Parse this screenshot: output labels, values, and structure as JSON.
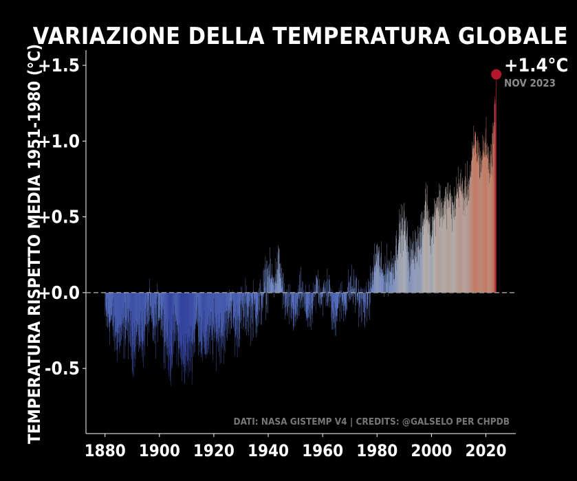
{
  "chart_data": {
    "type": "bar",
    "title": "VARIAZIONE DELLA TEMPERATURA GLOBALE",
    "ylabel": "TEMPERATURA RISPETTO MEDIA 1951-1980 (°C)",
    "xlabel": "",
    "x_range": [
      1873,
      2031
    ],
    "ylim": [
      -0.93,
      1.6
    ],
    "y_ticks": [
      {
        "value": 1.5,
        "label": "+1.5"
      },
      {
        "value": 1.0,
        "label": "+1.0"
      },
      {
        "value": 0.5,
        "label": "+0.5"
      },
      {
        "value": 0.0,
        "label": "+0.0"
      },
      {
        "value": -0.5,
        "label": "-0.5"
      }
    ],
    "x_ticks": [
      {
        "value": 1880,
        "label": "1880"
      },
      {
        "value": 1900,
        "label": "1900"
      },
      {
        "value": 1920,
        "label": "1920"
      },
      {
        "value": 1940,
        "label": "1940"
      },
      {
        "value": 1960,
        "label": "1960"
      },
      {
        "value": 1980,
        "label": "1980"
      },
      {
        "value": 2000,
        "label": "2000"
      },
      {
        "value": 2020,
        "label": "2020"
      }
    ],
    "data_note": "monthly anomalies, Jan 1880 - Nov 2023, approximated from the plotted curve",
    "keypoints": [
      [
        1880.0,
        -0.17
      ],
      [
        1882.0,
        -0.17
      ],
      [
        1884.0,
        -0.28
      ],
      [
        1886.0,
        -0.3
      ],
      [
        1888.0,
        -0.2
      ],
      [
        1890.0,
        -0.35
      ],
      [
        1892.0,
        -0.27
      ],
      [
        1894.0,
        -0.31
      ],
      [
        1896.0,
        -0.12
      ],
      [
        1898.0,
        -0.26
      ],
      [
        1900.0,
        -0.08
      ],
      [
        1902.0,
        -0.26
      ],
      [
        1904.0,
        -0.45
      ],
      [
        1906.0,
        -0.22
      ],
      [
        1908.0,
        -0.44
      ],
      [
        1910.0,
        -0.42
      ],
      [
        1912.0,
        -0.36
      ],
      [
        1914.0,
        -0.16
      ],
      [
        1916.0,
        -0.36
      ],
      [
        1918.0,
        -0.29
      ],
      [
        1920.0,
        -0.27
      ],
      [
        1922.0,
        -0.27
      ],
      [
        1924.0,
        -0.27
      ],
      [
        1926.0,
        -0.08
      ],
      [
        1928.0,
        -0.26
      ],
      [
        1930.0,
        -0.14
      ],
      [
        1932.0,
        -0.11
      ],
      [
        1934.0,
        -0.12
      ],
      [
        1936.0,
        -0.12
      ],
      [
        1938.0,
        -0.02
      ],
      [
        1940.0,
        0.12
      ],
      [
        1942.0,
        0.07
      ],
      [
        1944.0,
        0.2
      ],
      [
        1946.0,
        -0.07
      ],
      [
        1948.0,
        -0.1
      ],
      [
        1950.0,
        -0.17
      ],
      [
        1952.0,
        0.01
      ],
      [
        1954.0,
        -0.13
      ],
      [
        1956.0,
        -0.14
      ],
      [
        1958.0,
        0.06
      ],
      [
        1960.0,
        -0.03
      ],
      [
        1962.0,
        0.04
      ],
      [
        1964.0,
        -0.2
      ],
      [
        1966.0,
        -0.05
      ],
      [
        1968.0,
        -0.07
      ],
      [
        1970.0,
        0.03
      ],
      [
        1972.0,
        0.01
      ],
      [
        1974.0,
        -0.07
      ],
      [
        1976.0,
        -0.1
      ],
      [
        1978.0,
        0.07
      ],
      [
        1980.0,
        0.26
      ],
      [
        1982.0,
        0.12
      ],
      [
        1984.0,
        0.15
      ],
      [
        1986.0,
        0.18
      ],
      [
        1988.0,
        0.39
      ],
      [
        1990.0,
        0.45
      ],
      [
        1992.0,
        0.22
      ],
      [
        1994.0,
        0.31
      ],
      [
        1996.0,
        0.33
      ],
      [
        1998.0,
        0.61
      ],
      [
        2000.0,
        0.39
      ],
      [
        2002.0,
        0.63
      ],
      [
        2004.0,
        0.54
      ],
      [
        2006.0,
        0.63
      ],
      [
        2008.0,
        0.54
      ],
      [
        2010.0,
        0.72
      ],
      [
        2012.0,
        0.64
      ],
      [
        2014.0,
        0.74
      ],
      [
        2016.0,
        1.01
      ],
      [
        2018.0,
        0.85
      ],
      [
        2020.0,
        1.01
      ],
      [
        2021.0,
        0.85
      ],
      [
        2022.0,
        0.89
      ],
      [
        2023.0,
        1.1
      ],
      [
        2023.83,
        1.44
      ]
    ],
    "highlight": {
      "year": 2023.83,
      "value": 1.44,
      "label": "+1.4°C",
      "date": "NOV 2023",
      "color": "#b5172a"
    },
    "baseline_style": "dashed grey line at 0",
    "colormap": "coolwarm",
    "color_range": [
      -0.5,
      1.5
    ],
    "credits": "DATI: NASA GISTEMP V4 | CREDITS: @GALSELO PER CHPDB",
    "grid": false,
    "legend": "none"
  }
}
